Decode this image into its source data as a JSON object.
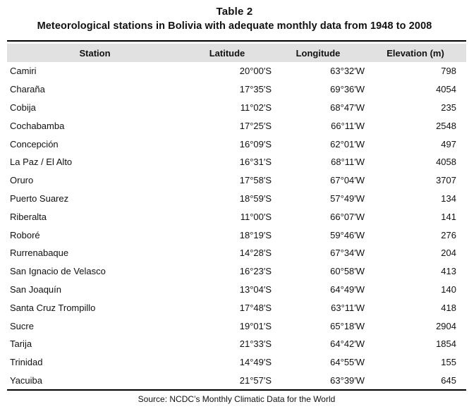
{
  "title": "Table 2",
  "subtitle": "Meteorological stations in Bolivia with adequate monthly data from 1948 to 2008",
  "columns": {
    "station": "Station",
    "latitude": "Latitude",
    "longitude": "Longitude",
    "elevation": "Elevation (m)"
  },
  "rows": [
    {
      "station": "Camiri",
      "latitude": "20°00′S",
      "longitude": "63°32′W",
      "elevation": "798"
    },
    {
      "station": "Charaña",
      "latitude": "17°35′S",
      "longitude": "69°36′W",
      "elevation": "4054"
    },
    {
      "station": "Cobija",
      "latitude": "11°02′S",
      "longitude": "68°47′W",
      "elevation": "235"
    },
    {
      "station": "Cochabamba",
      "latitude": "17°25′S",
      "longitude": "66°11′W",
      "elevation": "2548"
    },
    {
      "station": "Concepción",
      "latitude": "16°09′S",
      "longitude": "62°01′W",
      "elevation": "497"
    },
    {
      "station": "La Paz / El Alto",
      "latitude": "16°31′S",
      "longitude": "68°11′W",
      "elevation": "4058"
    },
    {
      "station": "Oruro",
      "latitude": "17°58′S",
      "longitude": "67°04′W",
      "elevation": "3707"
    },
    {
      "station": "Puerto Suarez",
      "latitude": "18°59′S",
      "longitude": "57°49′W",
      "elevation": "134"
    },
    {
      "station": "Riberalta",
      "latitude": "11°00′S",
      "longitude": "66°07′W",
      "elevation": "141"
    },
    {
      "station": "Roboré",
      "latitude": "18°19′S",
      "longitude": "59°46′W",
      "elevation": "276"
    },
    {
      "station": "Rurrenabaque",
      "latitude": "14°28′S",
      "longitude": "67°34′W",
      "elevation": "204"
    },
    {
      "station": "San Ignacio de Velasco",
      "latitude": "16°23′S",
      "longitude": "60°58′W",
      "elevation": "413"
    },
    {
      "station": "San Joaquín",
      "latitude": "13°04′S",
      "longitude": "64°49′W",
      "elevation": "140"
    },
    {
      "station": "Santa Cruz Trompillo",
      "latitude": "17°48′S",
      "longitude": "63°11′W",
      "elevation": "418"
    },
    {
      "station": "Sucre",
      "latitude": "19°01′S",
      "longitude": "65°18′W",
      "elevation": "2904"
    },
    {
      "station": "Tarija",
      "latitude": "21°33′S",
      "longitude": "64°42′W",
      "elevation": "1854"
    },
    {
      "station": "Trinidad",
      "latitude": "14°49′S",
      "longitude": "64°55′W",
      "elevation": "155"
    },
    {
      "station": "Yacuiba",
      "latitude": "21°57′S",
      "longitude": "63°39′W",
      "elevation": "645"
    }
  ],
  "source": "Source: NCDC’s Monthly Climatic Data for the World",
  "colors": {
    "header_bg": "#e1e1e1",
    "text": "#111111",
    "rule": "#000000"
  }
}
